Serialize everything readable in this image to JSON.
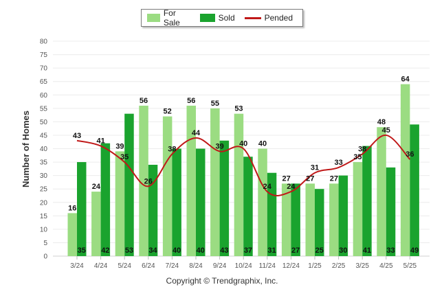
{
  "colors": {
    "for_sale": "#9bdc82",
    "sold": "#1aa32e",
    "pended": "#c01818",
    "grid": "#ececec",
    "axis_text": "#555555"
  },
  "legend": {
    "items": [
      {
        "label": "For Sale",
        "kind": "bar",
        "color": "#9bdc82"
      },
      {
        "label": "Sold",
        "kind": "bar",
        "color": "#1aa32e"
      },
      {
        "label": "Pended",
        "kind": "line",
        "color": "#c01818"
      }
    ]
  },
  "footer": "Copyright © Trendgraphix, Inc.",
  "chart_data": {
    "type": "bar",
    "ylabel": "Number of Homes",
    "xlabel": "",
    "ylim": [
      0,
      80
    ],
    "yticks": [
      0,
      5,
      10,
      15,
      20,
      25,
      30,
      35,
      40,
      45,
      50,
      55,
      60,
      65,
      70,
      75,
      80
    ],
    "grid": true,
    "legend_position": "top-center",
    "categories": [
      "3/24",
      "4/24",
      "5/24",
      "6/24",
      "7/24",
      "8/24",
      "9/24",
      "10/24",
      "11/24",
      "12/24",
      "1/25",
      "2/25",
      "3/25",
      "4/25",
      "5/25"
    ],
    "series": [
      {
        "name": "For Sale",
        "type": "bar",
        "values": [
          16,
          24,
          39,
          56,
          52,
          56,
          55,
          53,
          40,
          27,
          27,
          27,
          35,
          48,
          64
        ]
      },
      {
        "name": "Sold",
        "type": "bar",
        "values": [
          35,
          42,
          53,
          34,
          40,
          40,
          43,
          37,
          31,
          27,
          25,
          30,
          41,
          33,
          49
        ]
      },
      {
        "name": "Pended",
        "type": "line",
        "values": [
          43,
          41,
          35,
          26,
          38,
          44,
          39,
          40,
          24,
          24,
          31,
          33,
          38,
          45,
          36
        ]
      }
    ]
  }
}
